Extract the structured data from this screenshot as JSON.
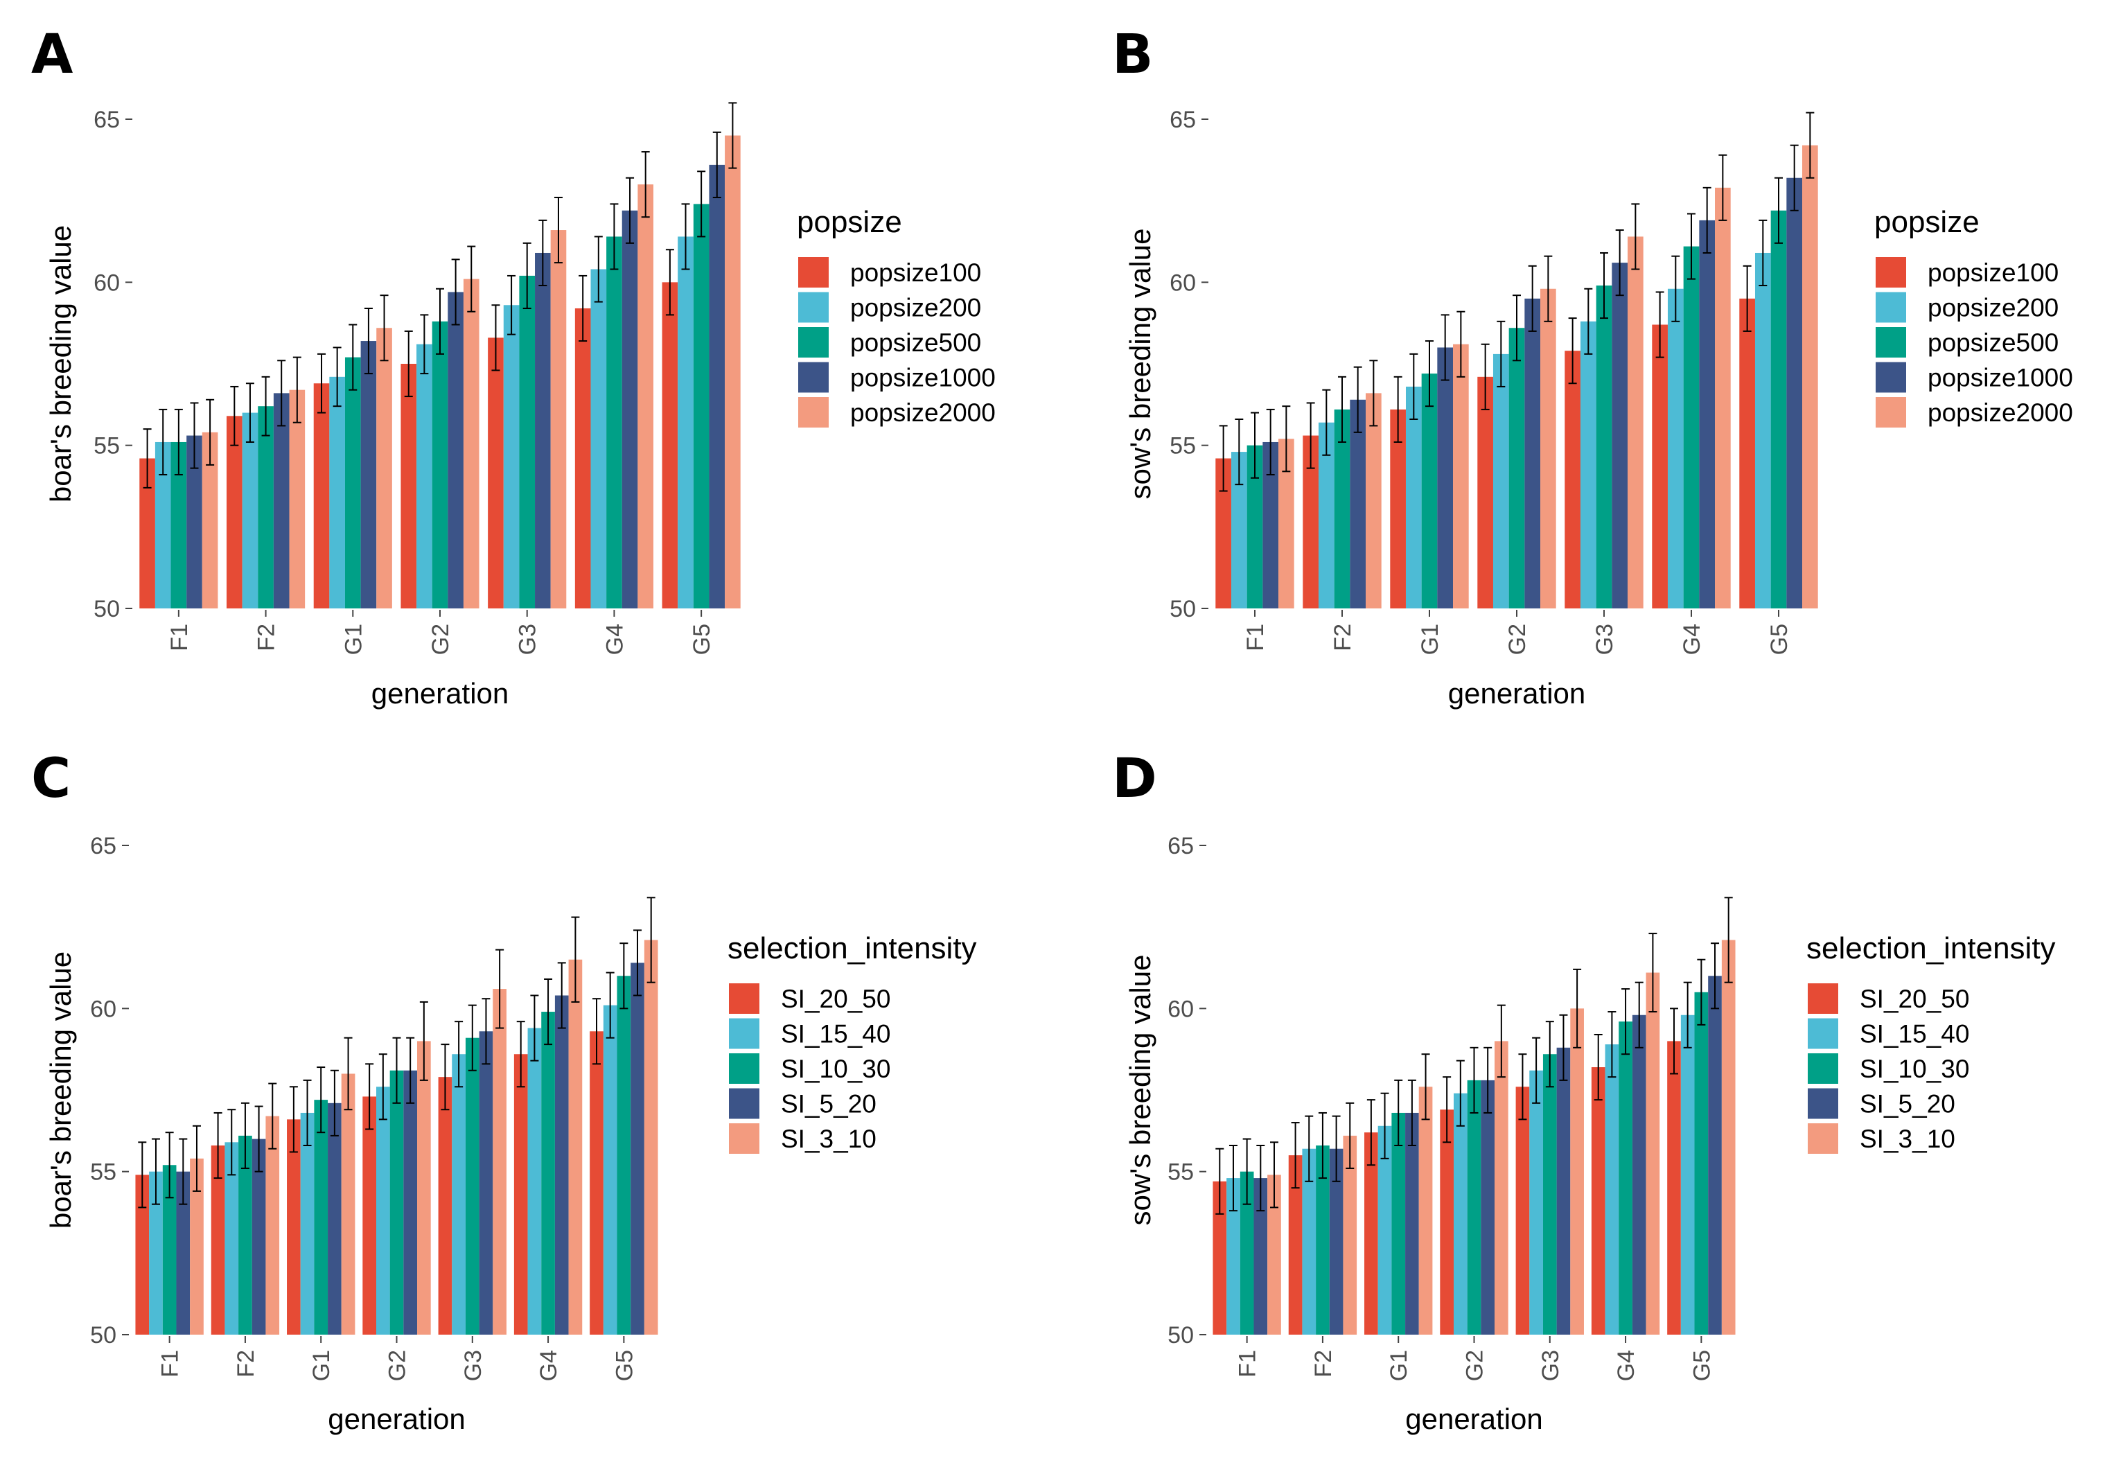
{
  "figure": {
    "background": "#ffffff"
  },
  "panels": [
    {
      "letter": "A",
      "legend_title": "popsize",
      "chart_data": {
        "type": "bar",
        "title": "",
        "xlabel": "generation",
        "ylabel": "boar's breeding value",
        "ylim": [
          50,
          65
        ],
        "yticks": [
          50,
          55,
          60,
          65
        ],
        "categories": [
          "F1",
          "F2",
          "G1",
          "G2",
          "G3",
          "G4",
          "G5"
        ],
        "series": [
          {
            "name": "popsize100",
            "color": "#E64B35",
            "values": [
              54.6,
              55.9,
              56.9,
              57.5,
              58.3,
              59.2,
              60.0
            ],
            "errors": [
              0.9,
              0.9,
              0.9,
              1.0,
              1.0,
              1.0,
              1.0
            ]
          },
          {
            "name": "popsize200",
            "color": "#4DBBD5",
            "values": [
              55.1,
              56.0,
              57.1,
              58.1,
              59.3,
              60.4,
              61.4
            ],
            "errors": [
              1.0,
              0.9,
              0.9,
              0.9,
              0.9,
              1.0,
              1.0
            ]
          },
          {
            "name": "popsize500",
            "color": "#00A087",
            "values": [
              55.1,
              56.2,
              57.7,
              58.8,
              60.2,
              61.4,
              62.4
            ],
            "errors": [
              1.0,
              0.9,
              1.0,
              1.0,
              1.0,
              1.0,
              1.0
            ]
          },
          {
            "name": "popsize1000",
            "color": "#3C5488",
            "values": [
              55.3,
              56.6,
              58.2,
              59.7,
              60.9,
              62.2,
              63.6
            ],
            "errors": [
              1.0,
              1.0,
              1.0,
              1.0,
              1.0,
              1.0,
              1.0
            ]
          },
          {
            "name": "popsize2000",
            "color": "#F39B7F",
            "values": [
              55.4,
              56.7,
              58.6,
              60.1,
              61.6,
              63.0,
              64.5
            ],
            "errors": [
              1.0,
              1.0,
              1.0,
              1.0,
              1.0,
              1.0,
              1.0
            ]
          }
        ]
      }
    },
    {
      "letter": "B",
      "legend_title": "popsize",
      "chart_data": {
        "type": "bar",
        "title": "",
        "xlabel": "generation",
        "ylabel": "sow's breeding value",
        "ylim": [
          50,
          65
        ],
        "yticks": [
          50,
          55,
          60,
          65
        ],
        "categories": [
          "F1",
          "F2",
          "G1",
          "G2",
          "G3",
          "G4",
          "G5"
        ],
        "series": [
          {
            "name": "popsize100",
            "color": "#E64B35",
            "values": [
              54.6,
              55.3,
              56.1,
              57.1,
              57.9,
              58.7,
              59.5
            ],
            "errors": [
              1.0,
              1.0,
              1.0,
              1.0,
              1.0,
              1.0,
              1.0
            ]
          },
          {
            "name": "popsize200",
            "color": "#4DBBD5",
            "values": [
              54.8,
              55.7,
              56.8,
              57.8,
              58.8,
              59.8,
              60.9
            ],
            "errors": [
              1.0,
              1.0,
              1.0,
              1.0,
              1.0,
              1.0,
              1.0
            ]
          },
          {
            "name": "popsize500",
            "color": "#00A087",
            "values": [
              55.0,
              56.1,
              57.2,
              58.6,
              59.9,
              61.1,
              62.2
            ],
            "errors": [
              1.0,
              1.0,
              1.0,
              1.0,
              1.0,
              1.0,
              1.0
            ]
          },
          {
            "name": "popsize1000",
            "color": "#3C5488",
            "values": [
              55.1,
              56.4,
              58.0,
              59.5,
              60.6,
              61.9,
              63.2
            ],
            "errors": [
              1.0,
              1.0,
              1.0,
              1.0,
              1.0,
              1.0,
              1.0
            ]
          },
          {
            "name": "popsize2000",
            "color": "#F39B7F",
            "values": [
              55.2,
              56.6,
              58.1,
              59.8,
              61.4,
              62.9,
              64.2
            ],
            "errors": [
              1.0,
              1.0,
              1.0,
              1.0,
              1.0,
              1.0,
              1.0
            ]
          }
        ]
      }
    },
    {
      "letter": "C",
      "legend_title": "selection_intensity",
      "chart_data": {
        "type": "bar",
        "title": "",
        "xlabel": "generation",
        "ylabel": "boar's breeding value",
        "ylim": [
          50,
          65
        ],
        "yticks": [
          50,
          55,
          60,
          65
        ],
        "categories": [
          "F1",
          "F2",
          "G1",
          "G2",
          "G3",
          "G4",
          "G5"
        ],
        "series": [
          {
            "name": "SI_20_50",
            "color": "#E64B35",
            "values": [
              54.9,
              55.8,
              56.6,
              57.3,
              57.9,
              58.6,
              59.3
            ],
            "errors": [
              1.0,
              1.0,
              1.0,
              1.0,
              1.0,
              1.0,
              1.0
            ]
          },
          {
            "name": "SI_15_40",
            "color": "#4DBBD5",
            "values": [
              55.0,
              55.9,
              56.8,
              57.6,
              58.6,
              59.4,
              60.1
            ],
            "errors": [
              1.0,
              1.0,
              1.0,
              1.0,
              1.0,
              1.0,
              1.0
            ]
          },
          {
            "name": "SI_10_30",
            "color": "#00A087",
            "values": [
              55.2,
              56.1,
              57.2,
              58.1,
              59.1,
              59.9,
              61.0
            ],
            "errors": [
              1.0,
              1.0,
              1.0,
              1.0,
              1.0,
              1.0,
              1.0
            ]
          },
          {
            "name": "SI_5_20",
            "color": "#3C5488",
            "values": [
              55.0,
              56.0,
              57.1,
              58.1,
              59.3,
              60.4,
              61.4
            ],
            "errors": [
              1.0,
              1.0,
              1.0,
              1.0,
              1.0,
              1.0,
              1.0
            ]
          },
          {
            "name": "SI_3_10",
            "color": "#F39B7F",
            "values": [
              55.4,
              56.7,
              58.0,
              59.0,
              60.6,
              61.5,
              62.1
            ],
            "errors": [
              1.0,
              1.0,
              1.1,
              1.2,
              1.2,
              1.3,
              1.3
            ]
          }
        ]
      }
    },
    {
      "letter": "D",
      "legend_title": "selection_intensity",
      "chart_data": {
        "type": "bar",
        "title": "",
        "xlabel": "generation",
        "ylabel": "sow's breeding value",
        "ylim": [
          50,
          65
        ],
        "yticks": [
          50,
          55,
          60,
          65
        ],
        "categories": [
          "F1",
          "F2",
          "G1",
          "G2",
          "G3",
          "G4",
          "G5"
        ],
        "series": [
          {
            "name": "SI_20_50",
            "color": "#E64B35",
            "values": [
              54.7,
              55.5,
              56.2,
              56.9,
              57.6,
              58.2,
              59.0
            ],
            "errors": [
              1.0,
              1.0,
              1.0,
              1.0,
              1.0,
              1.0,
              1.0
            ]
          },
          {
            "name": "SI_15_40",
            "color": "#4DBBD5",
            "values": [
              54.8,
              55.7,
              56.4,
              57.4,
              58.1,
              58.9,
              59.8
            ],
            "errors": [
              1.0,
              1.0,
              1.0,
              1.0,
              1.0,
              1.0,
              1.0
            ]
          },
          {
            "name": "SI_10_30",
            "color": "#00A087",
            "values": [
              55.0,
              55.8,
              56.8,
              57.8,
              58.6,
              59.6,
              60.5
            ],
            "errors": [
              1.0,
              1.0,
              1.0,
              1.0,
              1.0,
              1.0,
              1.0
            ]
          },
          {
            "name": "SI_5_20",
            "color": "#3C5488",
            "values": [
              54.8,
              55.7,
              56.8,
              57.8,
              58.8,
              59.8,
              61.0
            ],
            "errors": [
              1.0,
              1.0,
              1.0,
              1.0,
              1.0,
              1.0,
              1.0
            ]
          },
          {
            "name": "SI_3_10",
            "color": "#F39B7F",
            "values": [
              54.9,
              56.1,
              57.6,
              59.0,
              60.0,
              61.1,
              62.1
            ],
            "errors": [
              1.0,
              1.0,
              1.0,
              1.1,
              1.2,
              1.2,
              1.3
            ]
          }
        ]
      }
    }
  ]
}
